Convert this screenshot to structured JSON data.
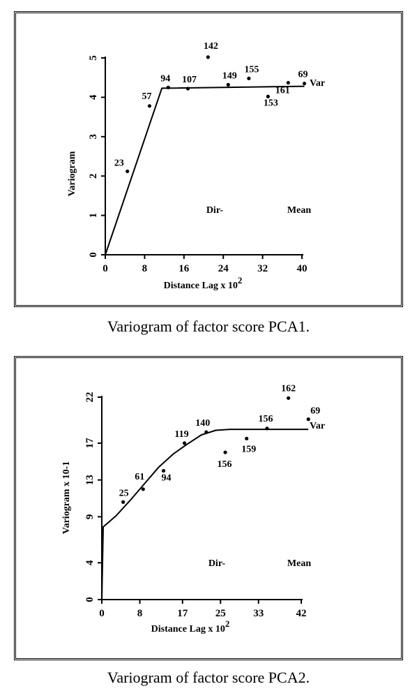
{
  "captions": [
    "Variogram of factor score PCA1.",
    "Variogram of factor score PCA2."
  ],
  "chart_data": [
    {
      "type": "scatter",
      "xlabel": "Distance Lag x 10",
      "xlabel_sup": "2",
      "ylabel": "Variogram",
      "xlim": [
        0,
        40
      ],
      "ylim": [
        0,
        5
      ],
      "x_ticks": [
        0,
        8,
        16,
        24,
        32,
        40
      ],
      "y_ticks": [
        0,
        1,
        2,
        3,
        4,
        5
      ],
      "points": [
        {
          "x": 4.5,
          "y": 2.12,
          "label": "23"
        },
        {
          "x": 9,
          "y": 3.78,
          "label": "57"
        },
        {
          "x": 12.8,
          "y": 4.25,
          "label": "94"
        },
        {
          "x": 16.8,
          "y": 4.22,
          "label": "107"
        },
        {
          "x": 20.9,
          "y": 5.02,
          "label": "142"
        },
        {
          "x": 25,
          "y": 4.32,
          "label": "149"
        },
        {
          "x": 29.2,
          "y": 4.48,
          "label": "155"
        },
        {
          "x": 33.1,
          "y": 4.02,
          "label": "153"
        },
        {
          "x": 37.2,
          "y": 4.37,
          "label": "161"
        },
        {
          "x": 40.5,
          "y": 4.35,
          "label": "69"
        }
      ],
      "model_line": [
        [
          0,
          0
        ],
        [
          11.5,
          4.23
        ],
        [
          40.5,
          4.28
        ]
      ],
      "model_label": "Var",
      "annotations": [
        "Dir-",
        "Mean"
      ]
    },
    {
      "type": "scatter",
      "xlabel": "Distance Lag x 10",
      "xlabel_sup": "2",
      "ylabel": "Variogram x 10-1",
      "xlim": [
        0,
        42
      ],
      "ylim": [
        0,
        22
      ],
      "x_ticks": [
        0,
        8,
        17,
        25,
        33,
        42
      ],
      "y_ticks": [
        0,
        4,
        9,
        13,
        17,
        22
      ],
      "points": [
        {
          "x": 4.5,
          "y": 10.6,
          "label": "25"
        },
        {
          "x": 8.7,
          "y": 12.0,
          "label": "61"
        },
        {
          "x": 13,
          "y": 14.0,
          "label": "94"
        },
        {
          "x": 17.4,
          "y": 17.0,
          "label": "119"
        },
        {
          "x": 22,
          "y": 18.2,
          "label": "140"
        },
        {
          "x": 26,
          "y": 16.0,
          "label": "156"
        },
        {
          "x": 30.5,
          "y": 17.5,
          "label": "159"
        },
        {
          "x": 34.8,
          "y": 18.6,
          "label": "156"
        },
        {
          "x": 39.3,
          "y": 21.9,
          "label": "162"
        },
        {
          "x": 43.5,
          "y": 19.6,
          "label": "69"
        }
      ],
      "model_line": [
        [
          0,
          0
        ],
        [
          0.3,
          7.9
        ],
        [
          3,
          9.1
        ],
        [
          6,
          10.8
        ],
        [
          9,
          12.6
        ],
        [
          12,
          14.4
        ],
        [
          15,
          15.8
        ],
        [
          18,
          16.9
        ],
        [
          21,
          17.9
        ],
        [
          24,
          18.4
        ],
        [
          27,
          18.5
        ],
        [
          43.5,
          18.5
        ]
      ],
      "model_label": "Var",
      "annotations": [
        "Dir-",
        "Mean"
      ]
    }
  ]
}
